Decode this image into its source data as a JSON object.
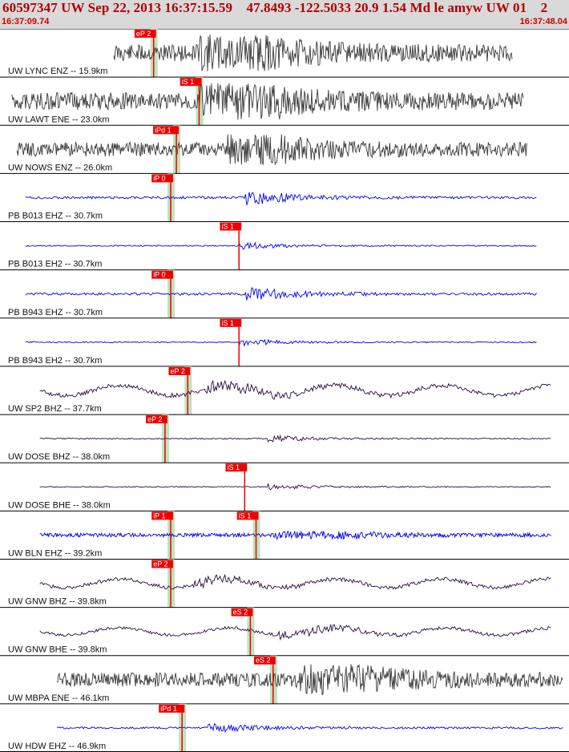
{
  "header": {
    "title": "60597347 UW Sep 22, 2013 16:37:15.59    47.8493 -122.5033 20.9 1.54 Md le amyw UW 01    2",
    "start_time": "16:37:09.74",
    "end_time": "16:37:48.04"
  },
  "colors": {
    "header_bg": "#d9d9d9",
    "header_text": "#b00000",
    "trace_gray": "#3a3a3a",
    "trace_blue": "#0000ee",
    "trace_purple": "#2a0a40",
    "pick_red": "#ee0000",
    "pick_window_green": "#bfe3bf"
  },
  "traces": [
    {
      "label": "UW LYNC ENZ -- 15.9km",
      "color": "gray",
      "style": "noisy",
      "amp": 0.55,
      "t0": 0.2,
      "t1": 0.9,
      "picks": [
        {
          "label": "eP 2",
          "t": 0.27,
          "shade": true
        }
      ],
      "arrival": 0.34,
      "arrival_amp": 1.0
    },
    {
      "label": "UW LAWT ENE -- 23.0km",
      "color": "gray",
      "style": "noisy",
      "amp": 0.55,
      "t0": 2.1,
      "t1": 92,
      "picks": [
        {
          "label": "iS 1",
          "t": 0.35,
          "shade": true
        }
      ],
      "arrival": 0.35,
      "arrival_amp": 1.0
    },
    {
      "label": "UW NOWS ENZ -- 26.0km",
      "color": "gray",
      "style": "noisy",
      "amp": 0.45,
      "t0": 3.0,
      "t1": 92.6,
      "picks": [
        {
          "label": "iPd 1",
          "t": 0.31,
          "shade": true
        }
      ],
      "arrival": 0.4,
      "arrival_amp": 0.6
    },
    {
      "label": "PB B013 EHZ -- 30.7km",
      "color": "blue",
      "style": "quiet",
      "amp": 0.1,
      "t0": 4.5,
      "t1": 94.5,
      "picks": [
        {
          "label": "iP 0",
          "t": 0.3,
          "shade": true
        }
      ],
      "arrival": 0.43,
      "arrival_amp": 1.0
    },
    {
      "label": "PB B013 EH2 -- 30.7km",
      "color": "blue",
      "style": "quiet",
      "amp": 0.05,
      "t0": 4.5,
      "t1": 94.5,
      "picks": [
        {
          "label": "iS 1",
          "t": 0.42,
          "shade": false
        }
      ],
      "arrival": 0.42,
      "arrival_amp": 1.0
    },
    {
      "label": "PB B943 EHZ -- 30.7km",
      "color": "blue",
      "style": "quiet",
      "amp": 0.1,
      "t0": 4.5,
      "t1": 94.5,
      "picks": [
        {
          "label": "iP 0",
          "t": 0.3,
          "shade": true
        }
      ],
      "arrival": 0.43,
      "arrival_amp": 1.0
    },
    {
      "label": "PB B943 EH2 -- 30.7km",
      "color": "blue",
      "style": "quiet",
      "amp": 0.05,
      "t0": 4.5,
      "t1": 94.5,
      "picks": [
        {
          "label": "iS 1",
          "t": 0.42,
          "shade": false
        }
      ],
      "arrival": 0.42,
      "arrival_amp": 1.0
    },
    {
      "label": "UW SP2 BHZ -- 37.7km",
      "color": "purple",
      "style": "wavy",
      "amp": 0.35,
      "t0": 0.07,
      "t1": 0.97,
      "picks": [
        {
          "label": "eP 2",
          "t": 0.33,
          "shade": true
        }
      ],
      "arrival": 0.36,
      "arrival_amp": 0.7
    },
    {
      "label": "UW DOSE BHZ -- 38.0km",
      "color": "purple",
      "style": "quiet",
      "amp": 0.05,
      "t0": 0.07,
      "t1": 0.97,
      "picks": [
        {
          "label": "eP 2",
          "t": 0.29,
          "shade": true
        }
      ],
      "arrival": 0.47,
      "arrival_amp": 0.9
    },
    {
      "label": "UW DOSE BHE -- 38.0km",
      "color": "purple",
      "style": "quiet",
      "amp": 0.04,
      "t0": 0.07,
      "t1": 0.97,
      "picks": [
        {
          "label": "iS 1",
          "t": 0.43,
          "shade": false
        }
      ],
      "arrival": 0.47,
      "arrival_amp": 0.9
    },
    {
      "label": "UW BLN EHZ -- 39.2km",
      "color": "blue",
      "style": "noisy",
      "amp": 0.12,
      "t0": 0.07,
      "t1": 0.97,
      "picks": [
        {
          "label": "iP 1",
          "t": 0.3,
          "shade": true
        },
        {
          "label": "iS 1",
          "t": 0.45,
          "shade": true
        }
      ],
      "arrival": 0.48,
      "arrival_amp": 0.9
    },
    {
      "label": "UW GNW BHZ -- 39.8km",
      "color": "purple",
      "style": "wavy",
      "amp": 0.3,
      "t0": 0.07,
      "t1": 0.97,
      "picks": [
        {
          "label": "eP 2",
          "t": 0.3,
          "shade": true
        }
      ],
      "arrival": 0.34,
      "arrival_amp": 0.5
    },
    {
      "label": "UW GNW BHE -- 39.8km",
      "color": "purple",
      "style": "wavy",
      "amp": 0.25,
      "t0": 0.07,
      "t1": 0.97,
      "picks": [
        {
          "label": "eS 2",
          "t": 0.44,
          "shade": true
        }
      ],
      "arrival": 0.49,
      "arrival_amp": 0.8
    },
    {
      "label": "UW MBPA ENE -- 46.1km",
      "color": "gray",
      "style": "noisy",
      "amp": 0.45,
      "t0": 0.1,
      "t1": 0.99,
      "picks": [
        {
          "label": "eS 2",
          "t": 0.48,
          "shade": true
        }
      ],
      "arrival": 0.52,
      "arrival_amp": 1.0
    },
    {
      "label": "UW HDW EHZ -- 46.9km",
      "color": "blue",
      "style": "quiet",
      "amp": 0.08,
      "t0": 0.1,
      "t1": 0.99,
      "picks": [
        {
          "label": "iPd 1",
          "t": 0.32,
          "shade": true
        }
      ],
      "arrival": 0.36,
      "arrival_amp": 0.8
    }
  ]
}
